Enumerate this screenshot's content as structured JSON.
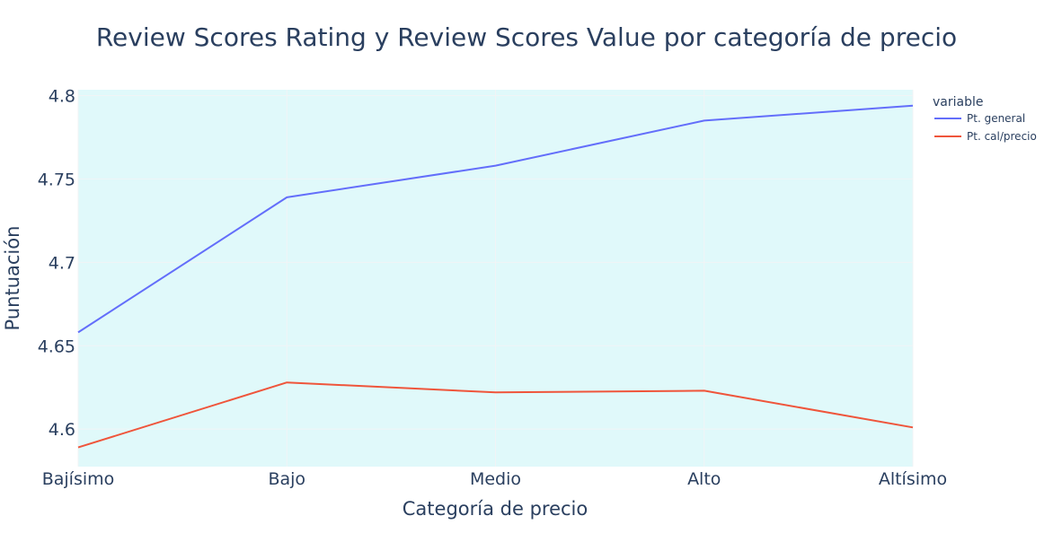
{
  "chart_data": {
    "type": "line",
    "title": "Review Scores Rating y Review Scores Value por categoría de precio",
    "xlabel": "Categoría de precio",
    "ylabel": "Puntuación",
    "categories": [
      "Bajísimo",
      "Bajo",
      "Medio",
      "Alto",
      "Altísimo"
    ],
    "ylim": [
      4.5775,
      4.8035
    ],
    "yticks": [
      4.6,
      4.65,
      4.7,
      4.75,
      4.8
    ],
    "ytick_labels": [
      "4.6",
      "4.65",
      "4.7",
      "4.75",
      "4.8"
    ],
    "grid": true,
    "legend": {
      "title": "variable",
      "placement": "right"
    },
    "series": [
      {
        "name": "Pt. general",
        "color": "#636efa",
        "values": [
          4.658,
          4.739,
          4.758,
          4.785,
          4.794
        ]
      },
      {
        "name": "Pt. cal/precio",
        "color": "#ef553b",
        "values": [
          4.589,
          4.628,
          4.622,
          4.623,
          4.601
        ]
      }
    ],
    "plot_background": "#e0f9fa",
    "grid_color": "#f1f4f6"
  }
}
